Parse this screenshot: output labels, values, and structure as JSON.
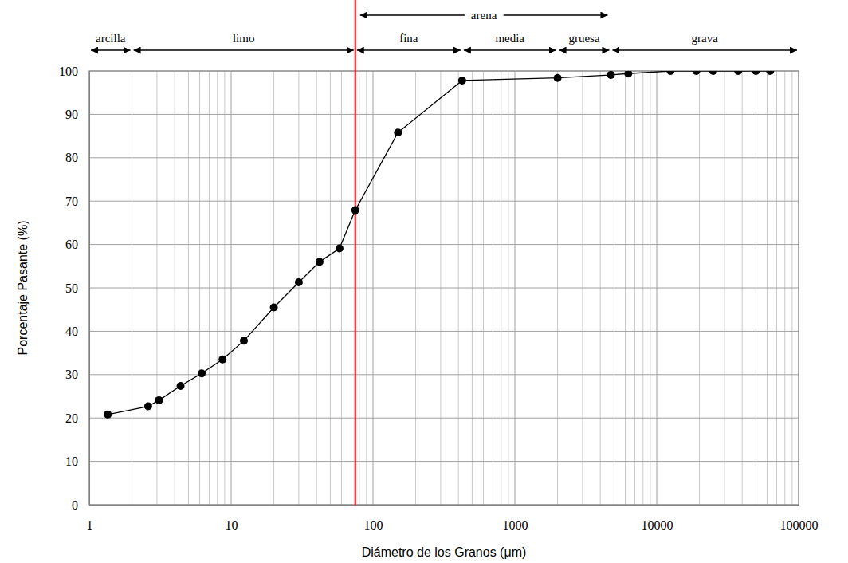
{
  "chart_data": {
    "type": "line",
    "x_label": "Diámetro de los Granos (μm)",
    "y_label": "Porcentaje Pasante (%)",
    "x": [
      1.35,
      2.6,
      3.1,
      4.4,
      6.2,
      8.7,
      12.3,
      20,
      30,
      42,
      58,
      75,
      150,
      425,
      2000,
      4750,
      6300,
      12500,
      19000,
      25000,
      37500,
      50000,
      63000
    ],
    "values": [
      20.8,
      22.7,
      24.1,
      27.4,
      30.3,
      33.5,
      37.8,
      45.5,
      51.3,
      56,
      59.1,
      67.9,
      85.8,
      97.8,
      98.4,
      99.1,
      99.4,
      100,
      100,
      100,
      100,
      100,
      100
    ],
    "color": "#000000",
    "marker": "circle",
    "line_style": "solid",
    "log": "x",
    "grid": true,
    "xlim": [
      1,
      100000
    ],
    "xticks": [
      1,
      10,
      100,
      1000,
      10000,
      100000
    ],
    "xticks_minor": [
      2,
      3,
      4,
      5,
      6,
      7,
      8,
      9,
      20,
      30,
      40,
      50,
      60,
      70,
      80,
      90,
      200,
      300,
      400,
      500,
      600,
      700,
      800,
      900,
      2000,
      3000,
      4000,
      5000,
      6000,
      7000,
      8000,
      9000,
      20000,
      30000,
      40000,
      50000,
      60000,
      70000,
      80000,
      90000
    ],
    "ylim": [
      0,
      100
    ],
    "yticks": [
      0,
      10,
      20,
      30,
      40,
      50,
      60,
      70,
      80,
      90,
      100
    ],
    "vline": {
      "value": 75,
      "color": "#ff0000"
    },
    "bands": [
      {
        "label": "arcilla",
        "from": 1,
        "to": 2
      },
      {
        "label": "limo",
        "from": 2,
        "to": 75
      },
      {
        "label": "fina",
        "from": 75,
        "to": 425
      },
      {
        "label": "media",
        "from": 425,
        "to": 2000
      },
      {
        "label": "gruesa",
        "from": 2000,
        "to": 4750
      },
      {
        "label": "grava",
        "from": 4750,
        "to": 100000
      }
    ],
    "band_group": {
      "label": "arena",
      "from": 75,
      "to": 4750
    }
  }
}
